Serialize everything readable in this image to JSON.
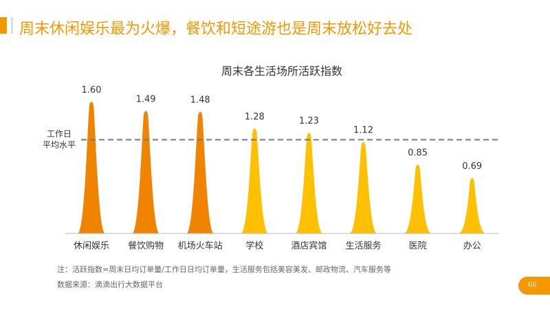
{
  "header": {
    "title": "周末休闲娱乐最为火爆，餐饮和短途游也是周末放松好去处"
  },
  "chart_data": {
    "type": "bar",
    "title": "周末各生活场所活跃指数",
    "categories": [
      "休闲娱乐",
      "餐饮购物",
      "机场火车站",
      "学校",
      "酒店宾馆",
      "生活服务",
      "医院",
      "办公"
    ],
    "values": [
      1.6,
      1.49,
      1.48,
      1.28,
      1.23,
      1.12,
      0.85,
      0.69
    ],
    "colors": [
      "#f08300",
      "#f08300",
      "#f08300",
      "#ffc000",
      "#ffc000",
      "#ffc000",
      "#ffc000",
      "#ffc000"
    ],
    "reference_line": {
      "value": 1.12,
      "label_line1": "工作日",
      "label_line2": "平均水平"
    },
    "ylim": [
      0,
      1.6
    ]
  },
  "footer": {
    "note": "注：活跃指数=周末日均订单量/工作日日均订单量，生活服务包括美容美发、邮政物流、汽车服务等",
    "source": "数据来源：滴滴出行大数据平台",
    "page": "66"
  }
}
